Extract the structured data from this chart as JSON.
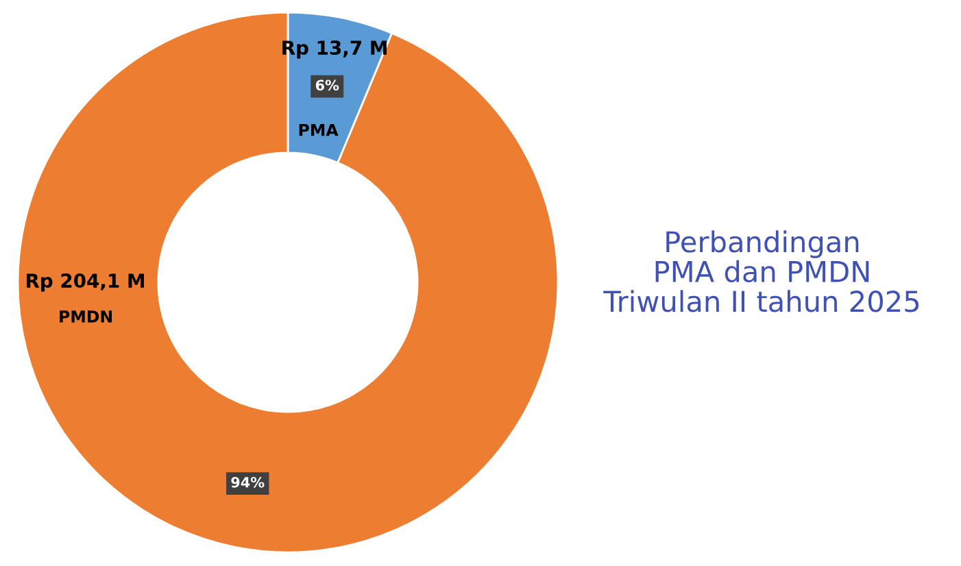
{
  "chart_data": {
    "type": "donut",
    "title": "Perbandingan\nPMA dan PMDN\nTriwulan II tahun 2025",
    "categories": [
      "PMA",
      "PMDN"
    ],
    "values": [
      13.7,
      204.1
    ],
    "value_labels": [
      "Rp 13,7 M",
      "Rp 204,1 M"
    ],
    "colors": [
      "#5b9bd5",
      "#ed7d31"
    ],
    "annotations": [
      {
        "text": "6%",
        "x": "PMA"
      },
      {
        "text": "94%",
        "x": "PMDN"
      }
    ],
    "legend": false
  }
}
